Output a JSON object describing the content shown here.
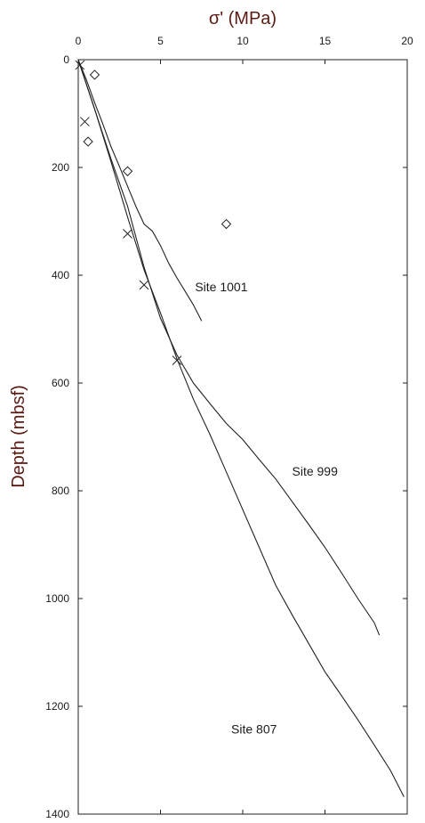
{
  "chart_data": {
    "type": "line",
    "title": "",
    "xlabel": "σ' (MPa)",
    "ylabel": "Depth (mbsf)",
    "xlim": [
      0,
      20
    ],
    "ylim": [
      0,
      1400
    ],
    "y_inverted": true,
    "x_axis_position": "top",
    "grid": false,
    "x_ticks": [
      0,
      5,
      10,
      15,
      20
    ],
    "y_ticks": [
      0,
      200,
      400,
      600,
      800,
      1000,
      1200,
      1400
    ],
    "series": [
      {
        "name": "Site 1001",
        "style": "line",
        "x": [
          0,
          0.5,
          1.0,
          1.5,
          2.0,
          2.5,
          3.0,
          3.5,
          4.0,
          4.5,
          5.0,
          5.5,
          6.0,
          6.5,
          7.0,
          7.5
        ],
        "y": [
          0,
          38,
          80,
          120,
          162,
          198,
          235,
          272,
          305,
          318,
          345,
          378,
          405,
          430,
          455,
          485
        ]
      },
      {
        "name": "Site 999",
        "style": "line",
        "x": [
          0,
          1,
          2,
          3,
          4,
          5,
          6,
          7,
          8,
          9,
          10,
          11,
          12,
          13,
          14,
          15,
          16,
          17,
          18,
          18.3
        ],
        "y": [
          0,
          92,
          185,
          272,
          385,
          480,
          548,
          600,
          638,
          675,
          705,
          742,
          778,
          820,
          862,
          905,
          952,
          1000,
          1045,
          1068
        ]
      },
      {
        "name": "Site 807",
        "style": "line",
        "x": [
          0,
          1,
          2,
          3,
          4,
          5,
          6,
          7,
          8,
          9,
          10,
          11,
          12,
          13,
          14,
          15,
          16,
          17,
          18,
          19,
          19.8
        ],
        "y": [
          0,
          92,
          190,
          292,
          390,
          470,
          555,
          630,
          695,
          765,
          835,
          905,
          975,
          1030,
          1083,
          1136,
          1180,
          1225,
          1272,
          1320,
          1368
        ]
      },
      {
        "name": "",
        "style": "x-marker",
        "x": [
          0.1,
          0.4,
          3.0,
          4.0,
          6.0
        ],
        "y": [
          10,
          115,
          323,
          418,
          558
        ]
      },
      {
        "name": "",
        "style": "diamond-marker",
        "x": [
          1.0,
          0.6,
          3.0,
          9.0
        ],
        "y": [
          28,
          152,
          207,
          305
        ]
      }
    ],
    "annotations": [
      {
        "text": "Site 1001",
        "x": 7.1,
        "y": 430
      },
      {
        "text": "Site 999",
        "x": 13.0,
        "y": 772
      },
      {
        "text": "Site 807",
        "x": 9.3,
        "y": 1250
      }
    ]
  }
}
